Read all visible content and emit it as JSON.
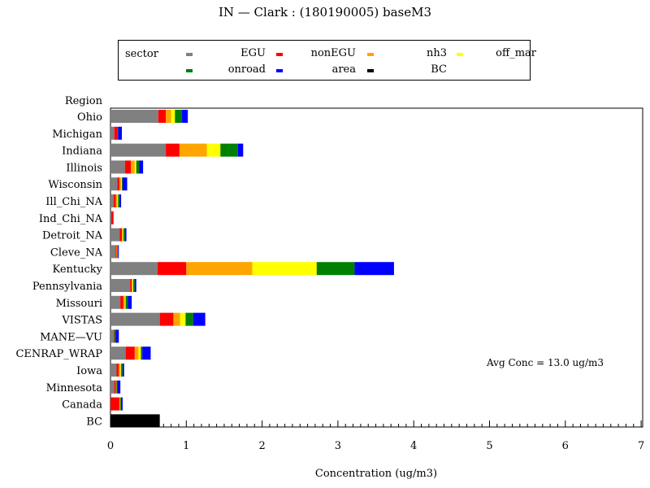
{
  "chart_data": {
    "type": "bar",
    "orientation": "horizontal",
    "stacked": true,
    "title": "IN — Clark : (180190005) baseM3",
    "xlabel": "Concentration (ug/m3)",
    "ylabel": "Region",
    "xlim": [
      0,
      7
    ],
    "xticks": [
      0,
      1,
      2,
      3,
      4,
      5,
      6,
      7
    ],
    "grid": false,
    "legend_placement": "top",
    "legend_title": "sector",
    "annotation": "Avg Conc =  13.0 ug/m3",
    "categories": [
      "Ohio",
      "Michigan",
      "Indiana",
      "Illinois",
      "Wisconsin",
      "Ill_Chi_NA",
      "Ind_Chi_NA",
      "Detroit_NA",
      "Cleve_NA",
      "Kentucky",
      "Pennsylvania",
      "Missouri",
      "VISTAS",
      "MANE—VU",
      "CENRAP_WRAP",
      "Iowa",
      "Minnesota",
      "Canada",
      "BC"
    ],
    "series": [
      {
        "name": "EGU",
        "color": "#808080",
        "values": [
          0.63,
          0.05,
          0.73,
          0.19,
          0.09,
          0.04,
          0.01,
          0.12,
          0.07,
          0.62,
          0.26,
          0.13,
          0.65,
          0.04,
          0.2,
          0.08,
          0.05,
          0.0,
          0.0
        ]
      },
      {
        "name": "nonEGU",
        "color": "#ff0000",
        "values": [
          0.1,
          0.04,
          0.18,
          0.08,
          0.03,
          0.03,
          0.03,
          0.03,
          0.01,
          0.38,
          0.02,
          0.04,
          0.18,
          0.01,
          0.12,
          0.03,
          0.02,
          0.12,
          0.0
        ]
      },
      {
        "name": "nh3",
        "color": "#ffa500",
        "values": [
          0.07,
          0.0,
          0.36,
          0.05,
          0.02,
          0.02,
          0.0,
          0.01,
          0.01,
          0.87,
          0.01,
          0.02,
          0.09,
          0.0,
          0.05,
          0.02,
          0.01,
          0.01,
          0.0
        ]
      },
      {
        "name": "off_mar",
        "color": "#ffff00",
        "values": [
          0.05,
          0.0,
          0.18,
          0.02,
          0.01,
          0.01,
          0.0,
          0.01,
          0.0,
          0.85,
          0.01,
          0.01,
          0.07,
          0.0,
          0.03,
          0.01,
          0.0,
          0.0,
          0.0
        ]
      },
      {
        "name": "onroad",
        "color": "#008000",
        "values": [
          0.09,
          0.01,
          0.23,
          0.04,
          0.01,
          0.02,
          0.0,
          0.02,
          0.01,
          0.5,
          0.02,
          0.03,
          0.1,
          0.02,
          0.02,
          0.02,
          0.01,
          0.01,
          0.0
        ]
      },
      {
        "name": "area",
        "color": "#0000ff",
        "values": [
          0.08,
          0.05,
          0.07,
          0.05,
          0.06,
          0.02,
          0.0,
          0.02,
          0.01,
          0.52,
          0.02,
          0.05,
          0.16,
          0.04,
          0.11,
          0.02,
          0.04,
          0.02,
          0.0
        ]
      },
      {
        "name": "BC",
        "color": "#000000",
        "values": [
          0,
          0,
          0,
          0,
          0,
          0,
          0,
          0,
          0,
          0,
          0,
          0,
          0,
          0,
          0,
          0,
          0,
          0,
          0.65
        ]
      }
    ]
  }
}
